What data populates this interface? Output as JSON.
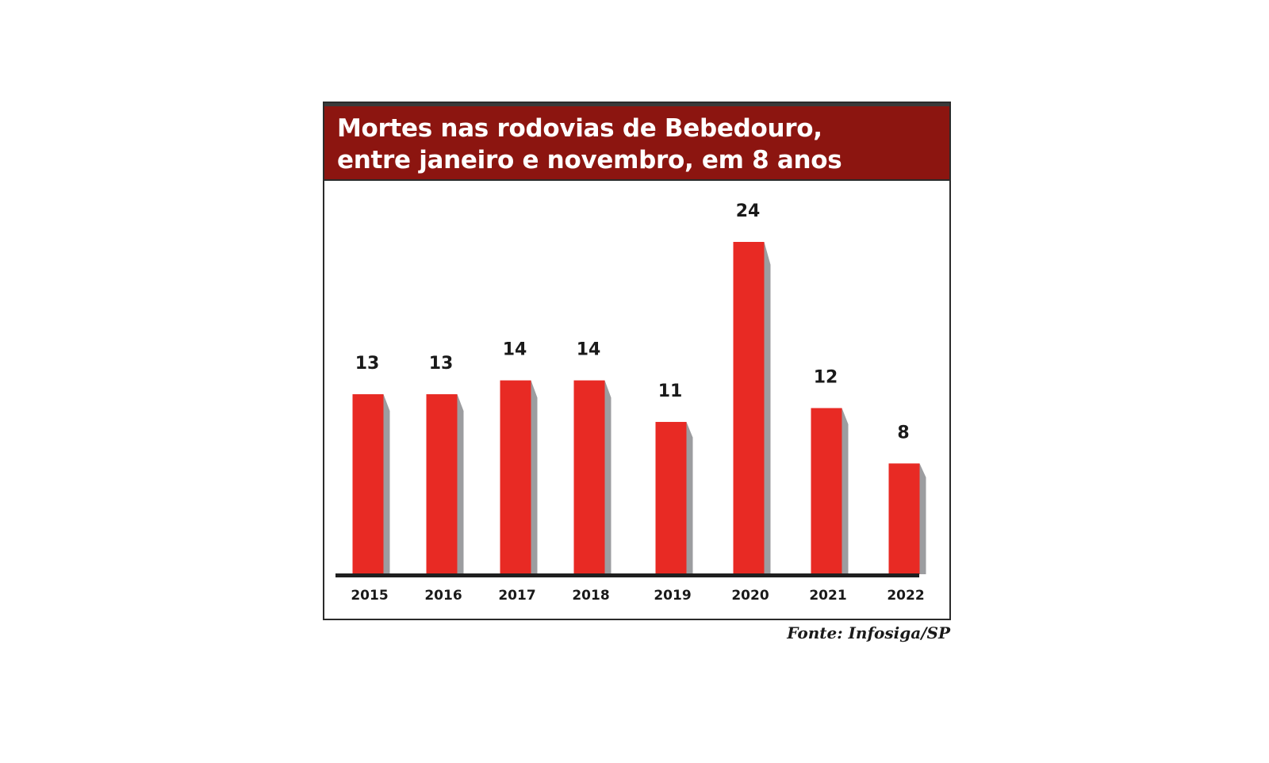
{
  "header": {
    "title_line1": "Mortes nas rodovias de Bebedouro,",
    "title_line2": "entre janeiro e novembro, em 8 anos"
  },
  "source": "Fonte: Infosiga/SP",
  "colors": {
    "bar": "#e82a24",
    "bar_shadow": "#9c9da0",
    "header_bg": "#8c1510",
    "baseline": "#1f1f1f"
  },
  "chart_data": {
    "type": "bar",
    "categories": [
      "2015",
      "2016",
      "2017",
      "2018",
      "2019",
      "2020",
      "2021",
      "2022"
    ],
    "values": [
      13,
      13,
      14,
      14,
      11,
      24,
      12,
      8
    ],
    "ylim": [
      0,
      24
    ],
    "grid": false,
    "legend": "none"
  }
}
